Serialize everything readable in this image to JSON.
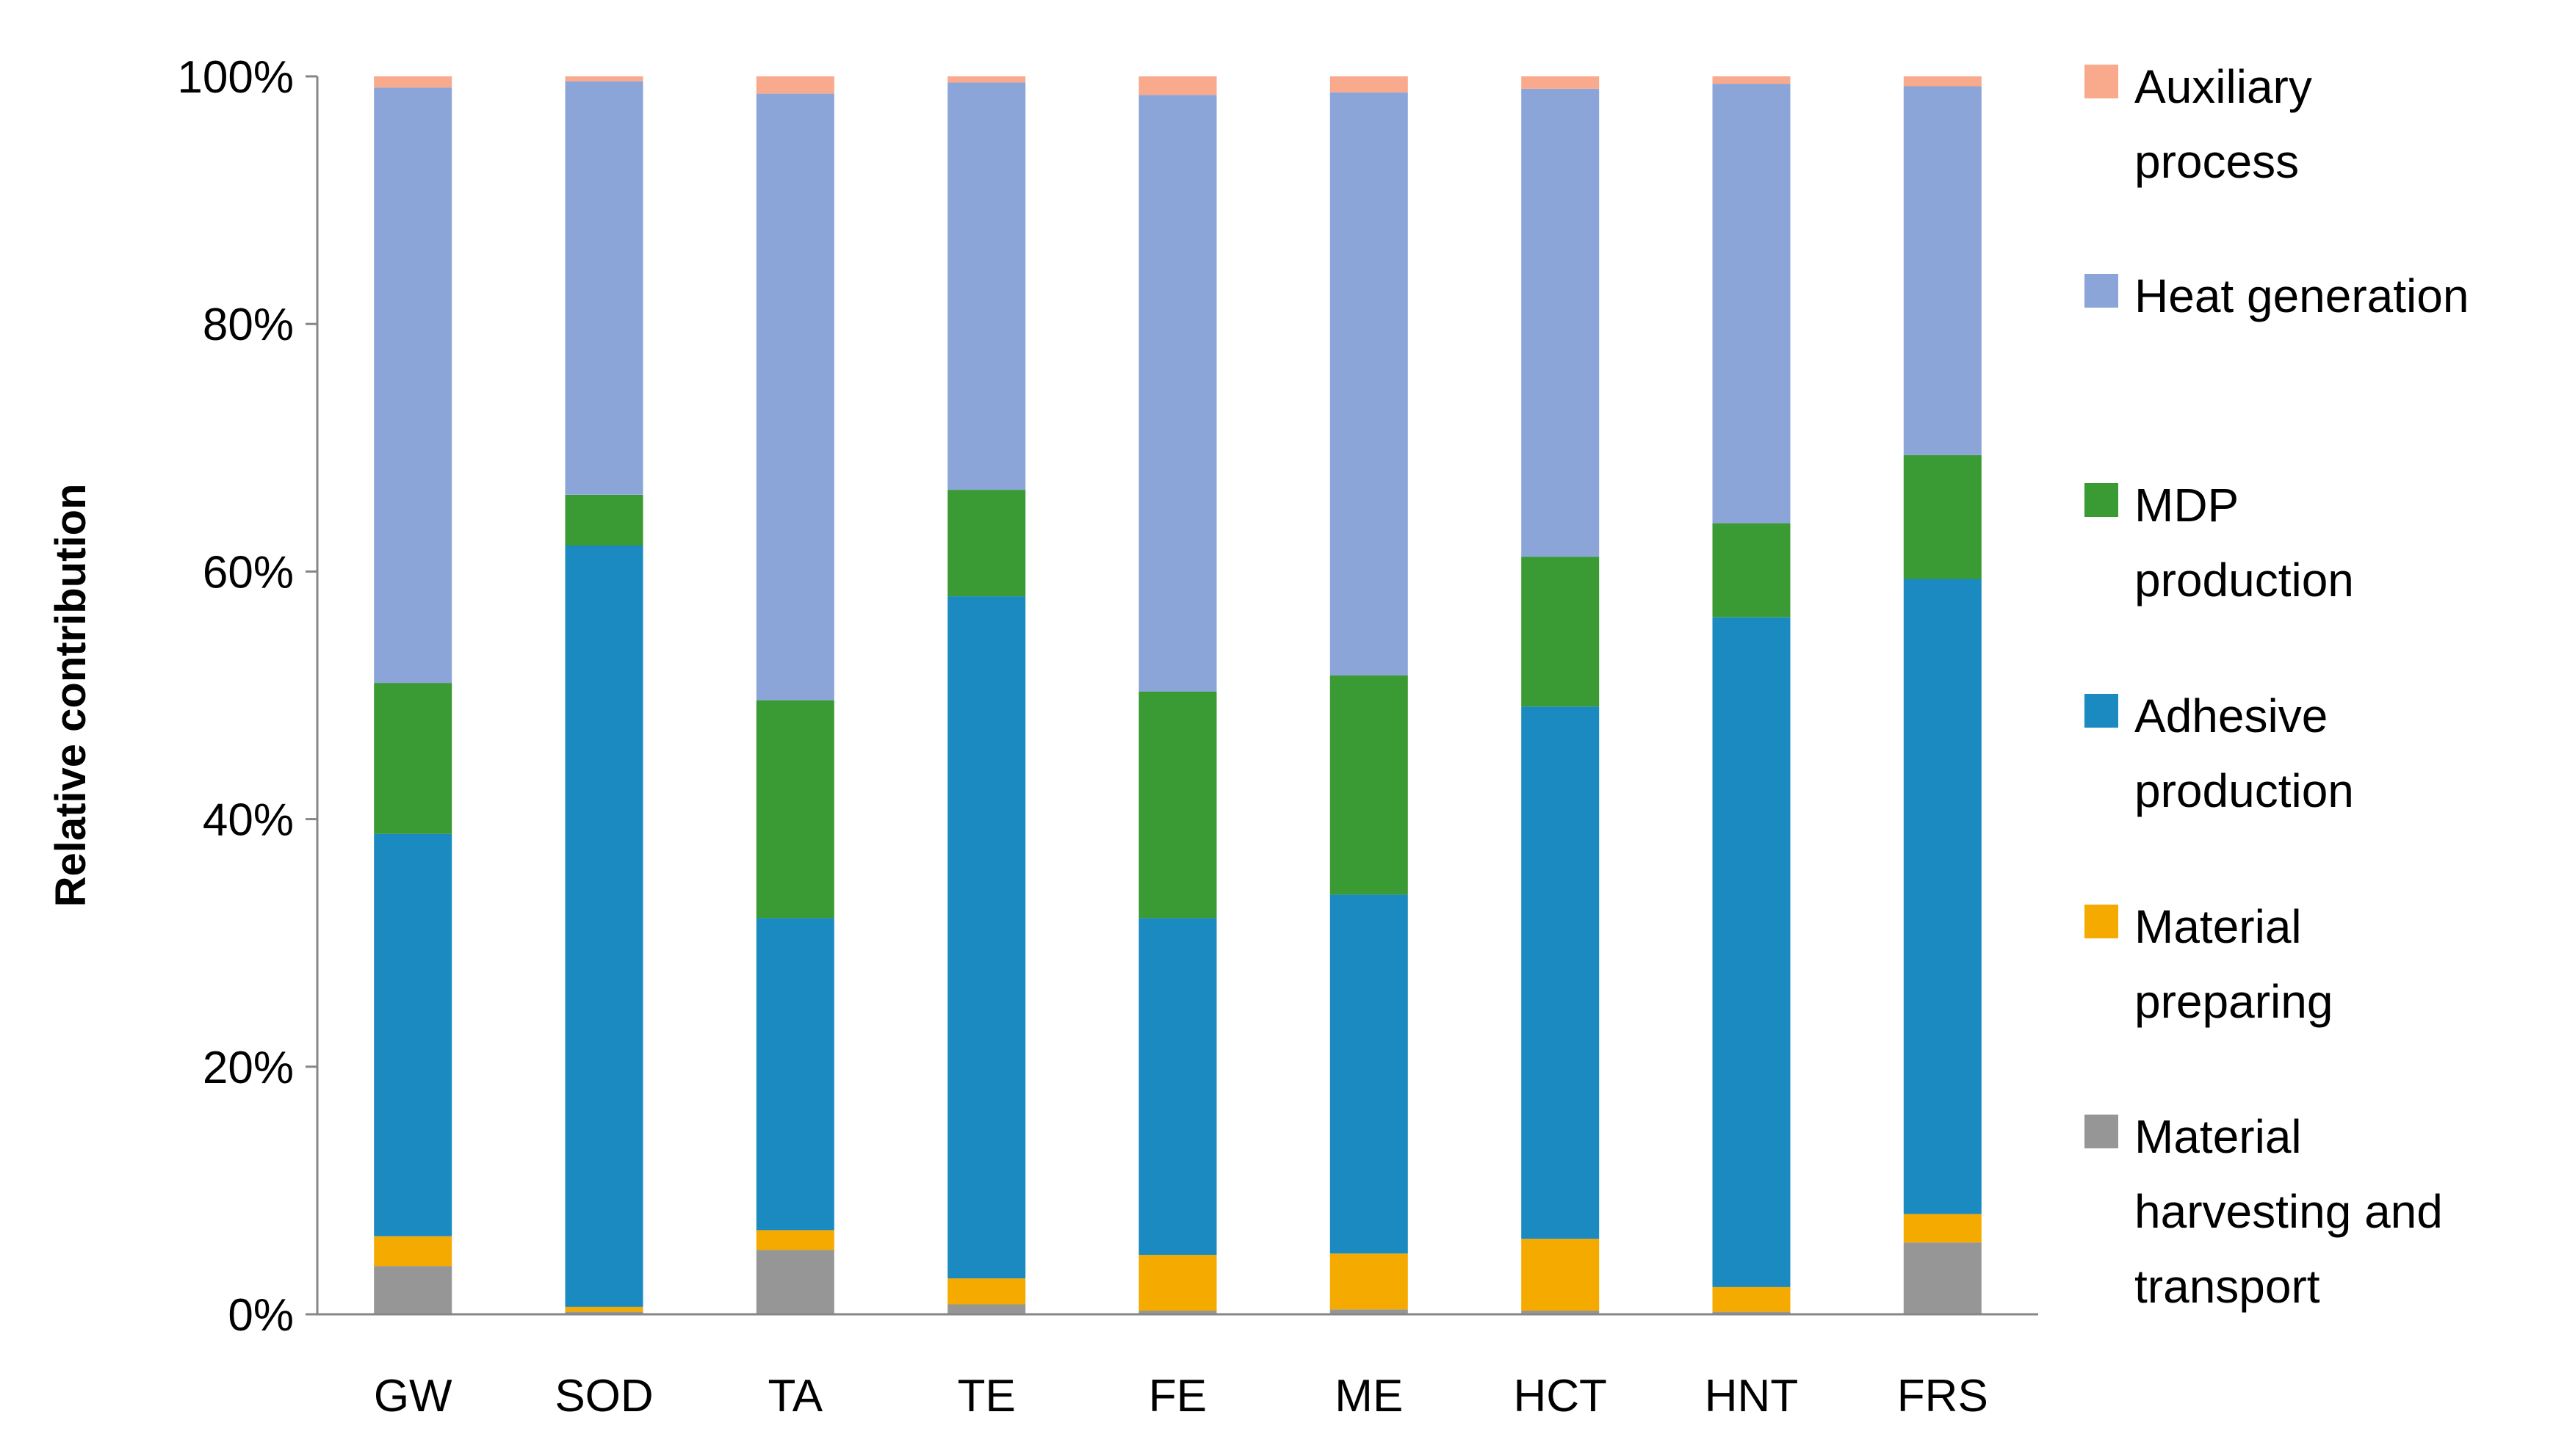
{
  "chart_data": {
    "type": "bar",
    "stacked": true,
    "normalized": true,
    "title": "",
    "xlabel": "",
    "ylabel": "Relative contribution",
    "ylim": [
      0,
      100
    ],
    "y_ticks": [
      "0%",
      "20%",
      "40%",
      "60%",
      "80%",
      "100%"
    ],
    "y_tick_values": [
      0,
      20,
      40,
      60,
      80,
      100
    ],
    "grid": false,
    "legend_position": "right",
    "categories": [
      "GW",
      "SOD",
      "TA",
      "TE",
      "FE",
      "ME",
      "HCT",
      "HNT",
      "FRS"
    ],
    "series": [
      {
        "name": "Material harvesting and transport",
        "legend_lines": [
          "Material",
          "harvesting and",
          "transport"
        ],
        "color": "#969696",
        "values": [
          3.9,
          0.2,
          5.2,
          0.8,
          0.3,
          0.4,
          0.3,
          0.2,
          5.8
        ]
      },
      {
        "name": "Material preparing",
        "legend_lines": [
          "Material",
          "preparing"
        ],
        "color": "#F5AA00",
        "values": [
          2.4,
          0.4,
          1.6,
          2.1,
          4.5,
          4.5,
          5.8,
          2.0,
          2.3
        ]
      },
      {
        "name": "Adhesive production",
        "legend_lines": [
          "Adhesive",
          "production"
        ],
        "color": "#1A8AC0",
        "values": [
          32.5,
          61.5,
          25.2,
          55.1,
          27.2,
          29.0,
          43.0,
          54.1,
          51.3
        ]
      },
      {
        "name": "MDP production",
        "legend_lines": [
          "MDP",
          "production"
        ],
        "color": "#3A9A33",
        "values": [
          12.2,
          4.1,
          17.6,
          8.6,
          18.3,
          17.7,
          12.1,
          7.6,
          10.0
        ]
      },
      {
        "name": "Heat generation",
        "legend_lines": [
          "Heat generation"
        ],
        "color": "#8BA5D9",
        "values": [
          48.1,
          33.4,
          49.0,
          32.9,
          48.2,
          47.1,
          37.8,
          35.5,
          29.8
        ]
      },
      {
        "name": "Auxiliary process",
        "legend_lines": [
          "Auxiliary",
          "process"
        ],
        "color": "#F9A98C",
        "values": [
          0.9,
          0.4,
          1.4,
          0.5,
          1.5,
          1.3,
          1.0,
          0.6,
          0.8
        ]
      }
    ]
  }
}
